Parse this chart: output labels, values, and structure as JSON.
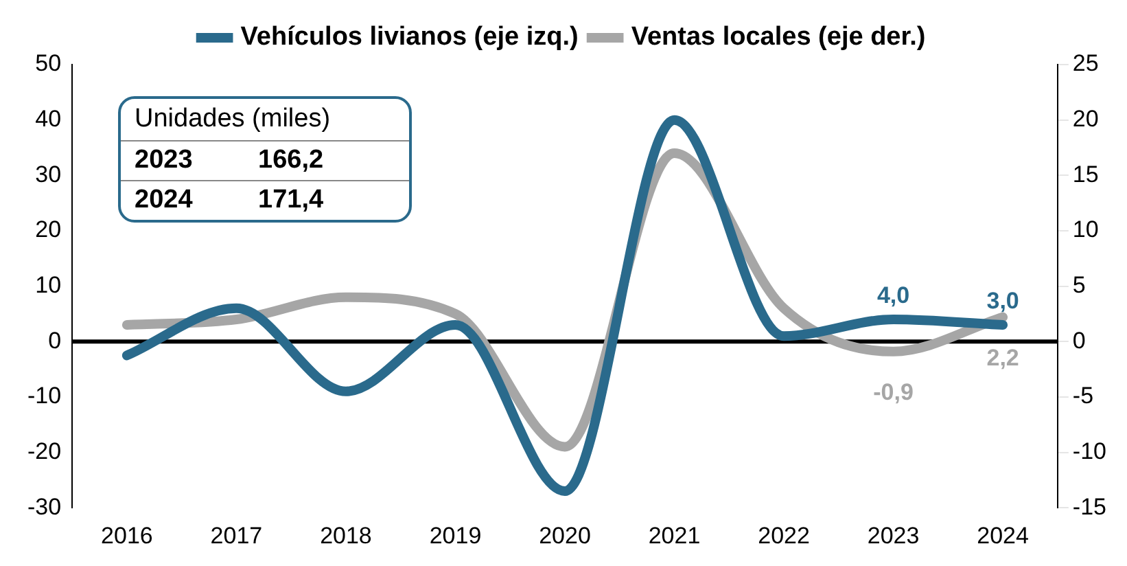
{
  "chart_data": {
    "type": "line",
    "categories": [
      "2016",
      "2017",
      "2018",
      "2019",
      "2020",
      "2021",
      "2022",
      "2023",
      "2024"
    ],
    "series": [
      {
        "name": "Vehículos livianos (eje izq.)",
        "color": "#2a6a8c",
        "values": [
          -2.5,
          6,
          -9,
          3,
          -27,
          40,
          1,
          4.0,
          3.0
        ],
        "value_labels": [
          null,
          null,
          null,
          null,
          null,
          null,
          null,
          "4,0",
          "3,0"
        ]
      },
      {
        "name": "Ventas locales (eje der.)",
        "color": "#a6a6a6",
        "axis": "y2",
        "values": [
          1.5,
          2,
          4,
          2.5,
          -9.5,
          17,
          3,
          -0.9,
          2.2
        ],
        "value_labels": [
          null,
          null,
          null,
          null,
          null,
          null,
          null,
          "-0,9",
          "2,2"
        ]
      }
    ],
    "ylim": [
      -30,
      50
    ],
    "yticks": [
      -30,
      -20,
      -10,
      0,
      10,
      20,
      30,
      40,
      50
    ],
    "y2lim": [
      -15,
      25
    ],
    "y2ticks": [
      -15,
      -10,
      -5,
      0,
      5,
      10,
      15,
      20,
      25
    ],
    "annotations": [
      "Unidades (miles)",
      "2023",
      "166,2",
      "2024",
      "171,4"
    ],
    "ref_lines": [
      {
        "axis": "y",
        "value": 0,
        "color": "#000000"
      }
    ],
    "legend": "top",
    "grid": false
  }
}
